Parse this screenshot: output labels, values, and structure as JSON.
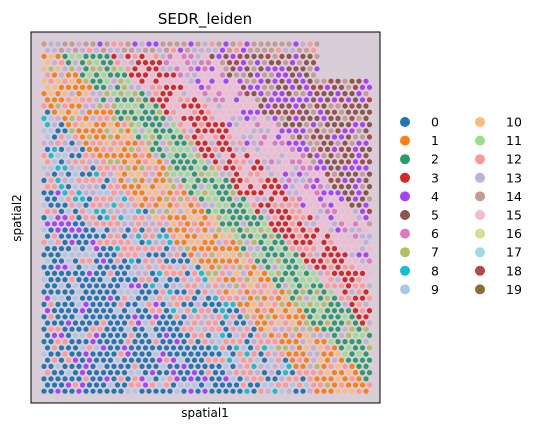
{
  "chart_data": {
    "type": "scatter",
    "title": "SEDR_leiden",
    "xlabel": "spatial1",
    "ylabel": "spatial2",
    "grid": false,
    "legend_position": "right",
    "legend_columns": 2,
    "categories": [
      {
        "label": "0",
        "color": "#1f77b4"
      },
      {
        "label": "1",
        "color": "#ff7f0e"
      },
      {
        "label": "2",
        "color": "#279e68"
      },
      {
        "label": "3",
        "color": "#d62728"
      },
      {
        "label": "4",
        "color": "#aa40fc"
      },
      {
        "label": "5",
        "color": "#8c564b"
      },
      {
        "label": "6",
        "color": "#e377c2"
      },
      {
        "label": "7",
        "color": "#b5bd61"
      },
      {
        "label": "8",
        "color": "#17becf"
      },
      {
        "label": "9",
        "color": "#aec7e8"
      },
      {
        "label": "10",
        "color": "#ffbb78"
      },
      {
        "label": "11",
        "color": "#98df8a"
      },
      {
        "label": "12",
        "color": "#ff9896"
      },
      {
        "label": "13",
        "color": "#c5b0d5"
      },
      {
        "label": "14",
        "color": "#c49c94"
      },
      {
        "label": "15",
        "color": "#f7b6d2"
      },
      {
        "label": "16",
        "color": "#dbdb8d"
      },
      {
        "label": "17",
        "color": "#9edae5"
      },
      {
        "label": "18",
        "color": "#ad494a"
      },
      {
        "label": "19",
        "color": "#8c6d31"
      }
    ]
  }
}
